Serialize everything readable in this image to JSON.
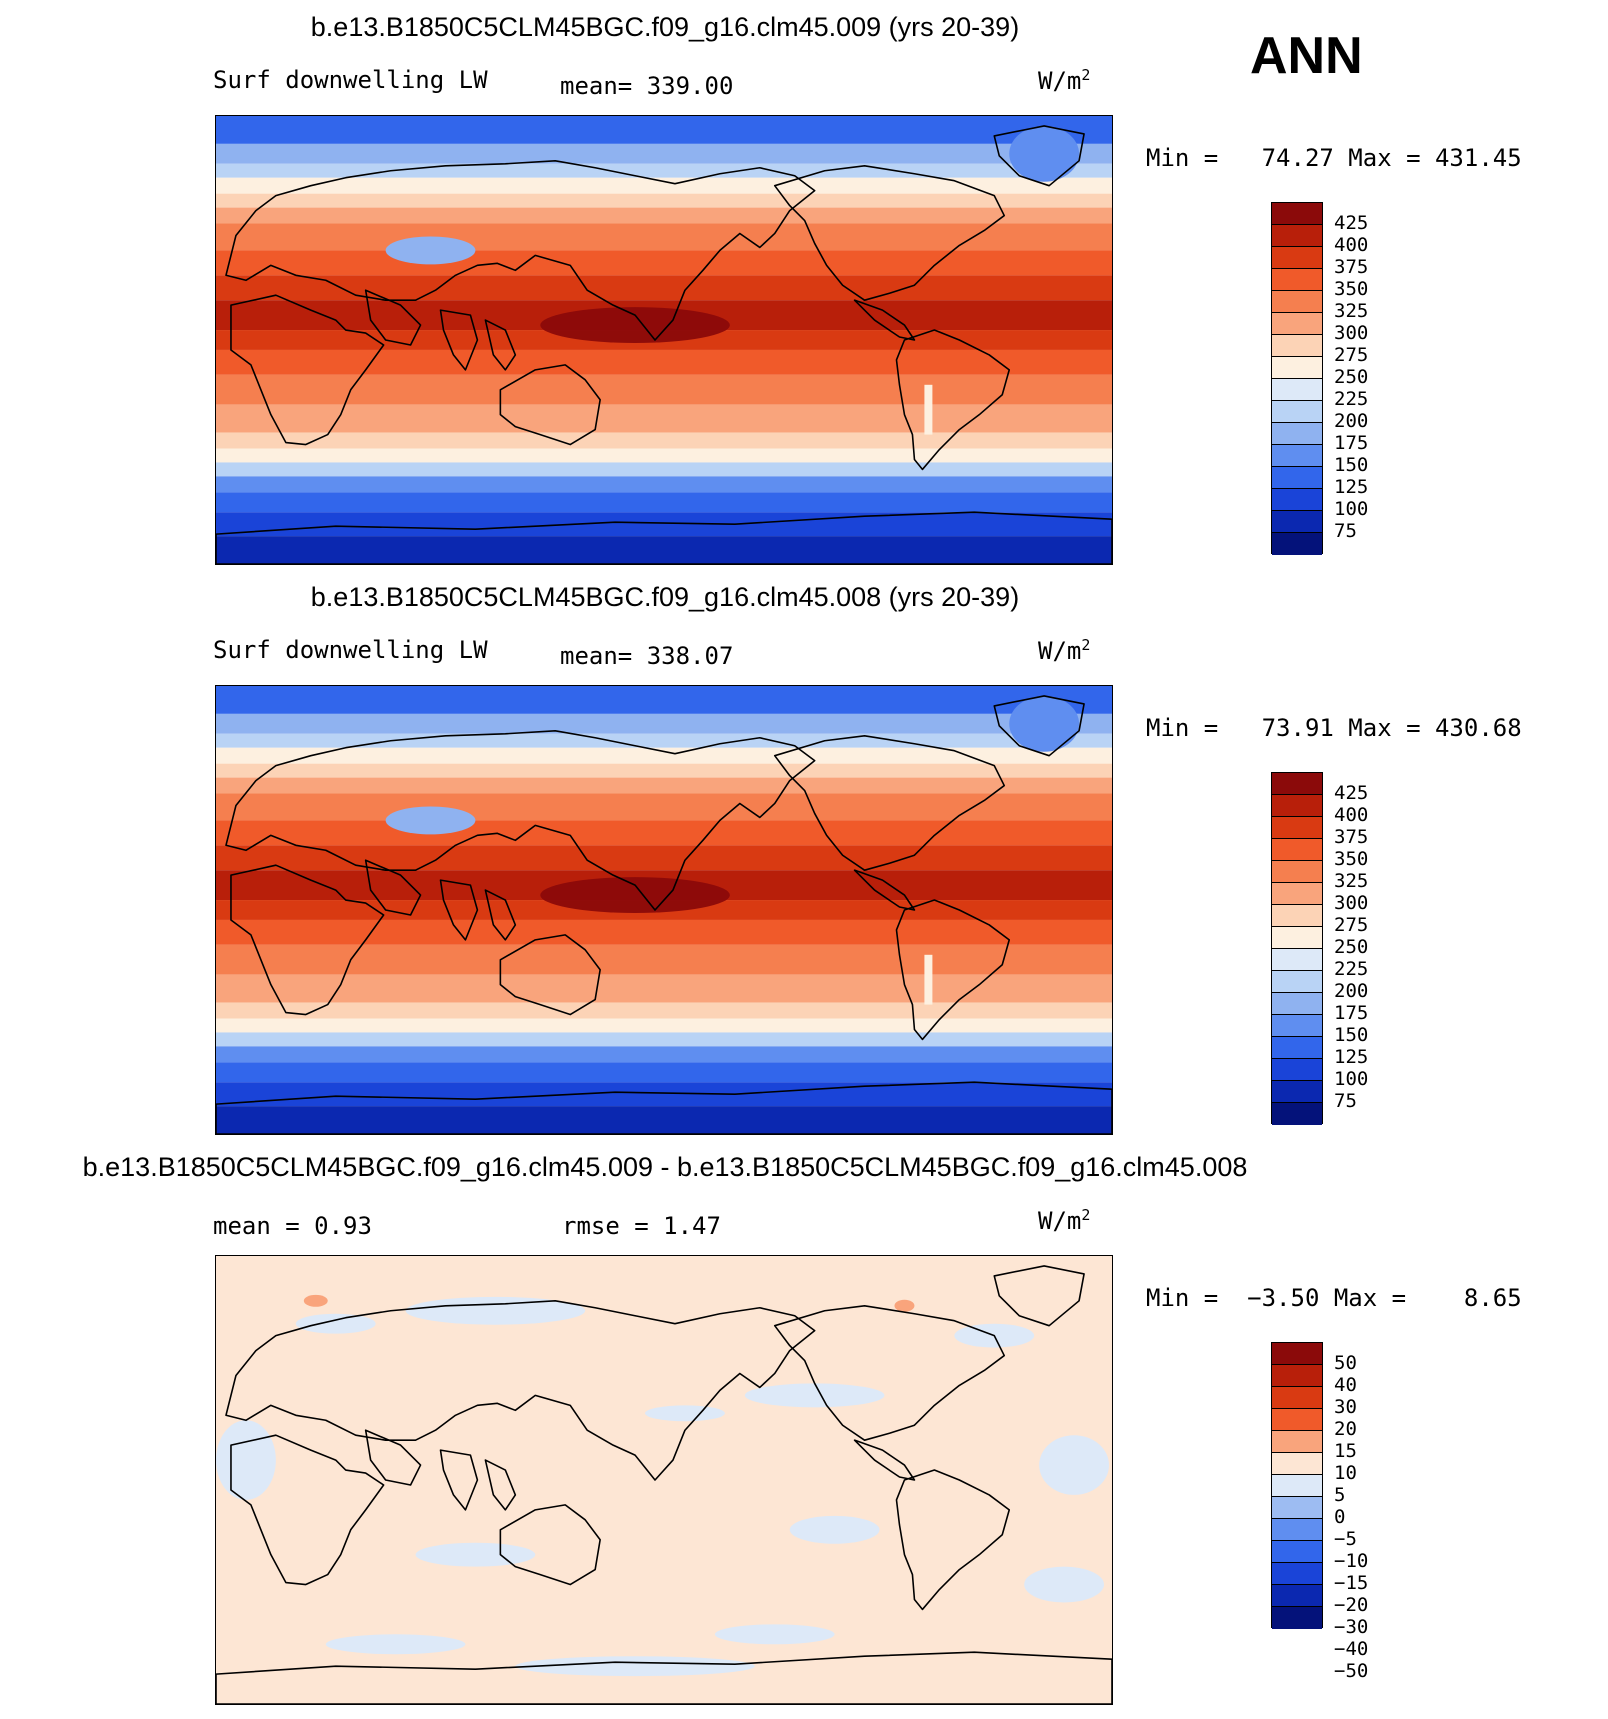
{
  "season": "ANN",
  "units": "W/m",
  "units_sup": "2",
  "palette_abs": [
    "#8b0a0a",
    "#b81f0a",
    "#d93a12",
    "#f05a2a",
    "#f57f4f",
    "#f9a47c",
    "#fcd3b6",
    "#fdf0e0",
    "#dde9f8",
    "#b9d3f5",
    "#8fb2f0",
    "#5f8ef0",
    "#3266eb",
    "#1a44d8",
    "#0b28b0",
    "#04127a"
  ],
  "palette_diff": [
    "#8b0a0a",
    "#b81f0a",
    "#d93a12",
    "#f05a2a",
    "#f9a47c",
    "#fde6d4",
    "#dde9f8",
    "#9dbcf2",
    "#5f8ef0",
    "#3266eb",
    "#1a44d8",
    "#0b28b0",
    "#04127a"
  ],
  "panels": [
    {
      "title": "b.e13.B1850C5CLM45BGC.f09_g16.clm45.009 (yrs 20-39)",
      "var_label": "Surf downwelling LW",
      "stat_label": "mean= 339.00",
      "min_max": "Min =   74.27 Max = 431.45",
      "levels": [
        "425",
        "400",
        "375",
        "350",
        "325",
        "300",
        "275",
        "250",
        "225",
        "200",
        "175",
        "150",
        "125",
        "100",
        "75"
      ],
      "kind": "abs"
    },
    {
      "title": "b.e13.B1850C5CLM45BGC.f09_g16.clm45.008 (yrs 20-39)",
      "var_label": "Surf downwelling LW",
      "stat_label": "mean= 338.07",
      "min_max": "Min =   73.91 Max = 430.68",
      "levels": [
        "425",
        "400",
        "375",
        "350",
        "325",
        "300",
        "275",
        "250",
        "225",
        "200",
        "175",
        "150",
        "125",
        "100",
        "75"
      ],
      "kind": "abs"
    },
    {
      "title": "b.e13.B1850C5CLM45BGC.f09_g16.clm45.009 - b.e13.B1850C5CLM45BGC.f09_g16.clm45.008",
      "var_label": "mean =    0.93",
      "stat_label": "rmse =    1.47",
      "min_max": "Min =  −3.50 Max =    8.65",
      "levels": [
        "50",
        "40",
        "30",
        "20",
        "15",
        "10",
        "5",
        "0",
        "−5",
        "−10",
        "−15",
        "−20",
        "−30",
        "−40",
        "−50"
      ],
      "kind": "diff"
    }
  ]
}
